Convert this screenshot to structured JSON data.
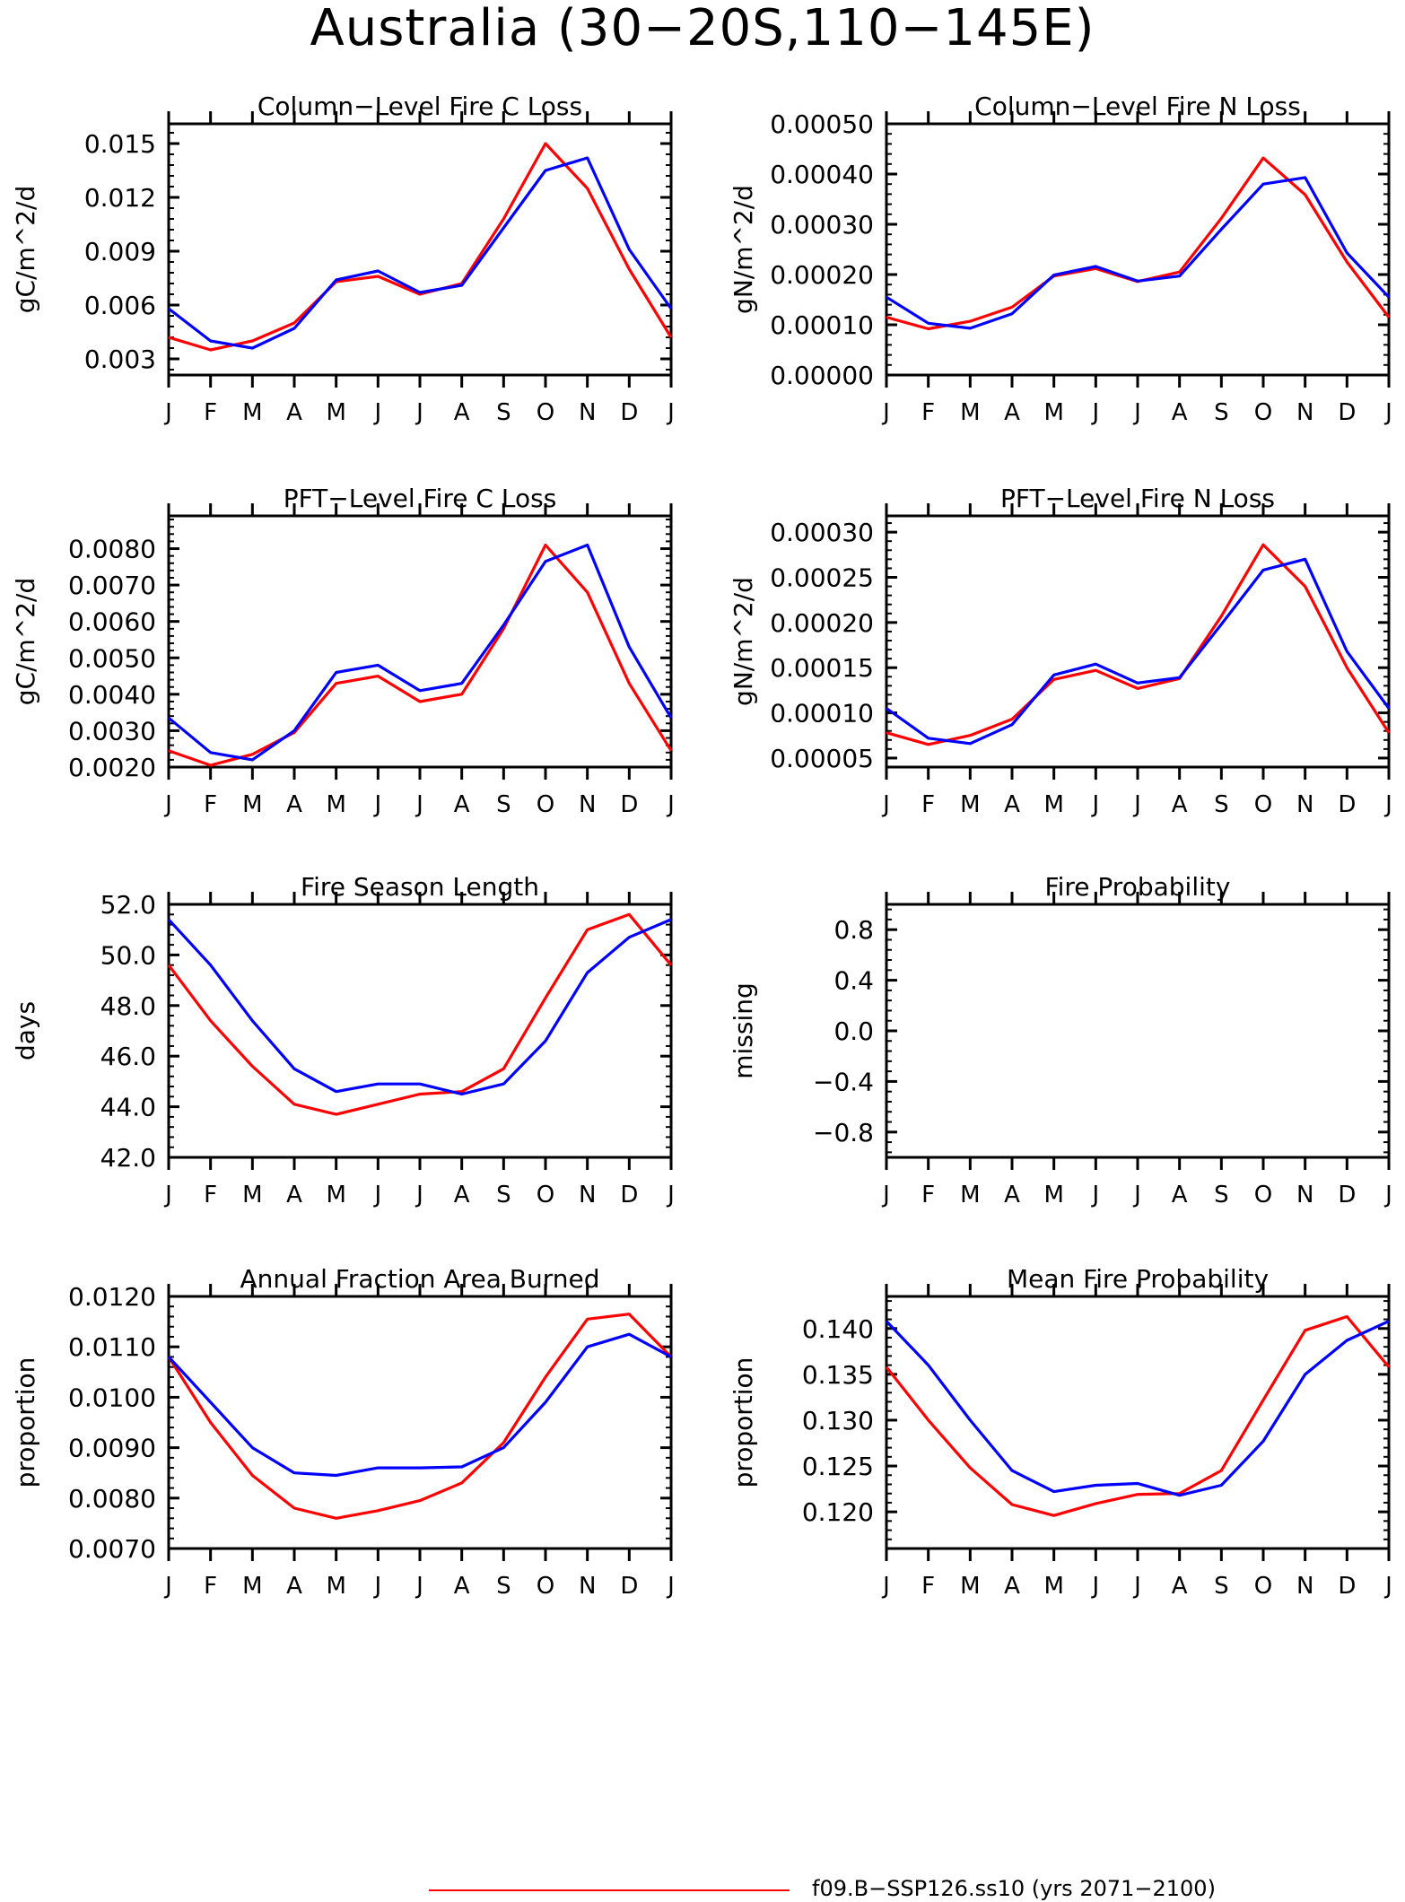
{
  "page": {
    "title": "Australia (30−20S,110−145E)",
    "legend": {
      "label": "f09.B−SSP126.ss10 (yrs 2071−2100)",
      "color": "#ff0000"
    }
  },
  "chart_data": [
    {
      "type": "line",
      "title": "Column−Level Fire C Loss",
      "ylabel": "gC/m^2/d",
      "x": [
        "J",
        "F",
        "M",
        "A",
        "M",
        "J",
        "J",
        "A",
        "S",
        "O",
        "N",
        "D",
        "J"
      ],
      "ylim": [
        0.0021,
        0.0161
      ],
      "yticks": [
        0.003,
        0.006,
        0.009,
        0.012,
        0.015
      ],
      "ytick_labels": [
        "0.003",
        "0.006",
        "0.009",
        "0.012",
        "0.015"
      ],
      "series": [
        {
          "color": "#ff0000",
          "values": [
            0.0042,
            0.0035,
            0.004,
            0.005,
            0.0073,
            0.0076,
            0.0066,
            0.0072,
            0.0108,
            0.015,
            0.0125,
            0.008,
            0.0042
          ]
        },
        {
          "color": "#0000ff",
          "values": [
            0.0058,
            0.004,
            0.0036,
            0.0047,
            0.0074,
            0.0079,
            0.0067,
            0.0071,
            0.0103,
            0.0135,
            0.0142,
            0.0091,
            0.0058
          ]
        }
      ]
    },
    {
      "type": "line",
      "title": "Column−Level Fire N Loss",
      "ylabel": "gN/m^2/d",
      "x": [
        "J",
        "F",
        "M",
        "A",
        "M",
        "J",
        "J",
        "A",
        "S",
        "O",
        "N",
        "D",
        "J"
      ],
      "ylim": [
        0.0,
        0.0005
      ],
      "yticks": [
        0.0,
        0.0001,
        0.0002,
        0.0003,
        0.0004,
        0.0005
      ],
      "ytick_labels": [
        "0.00000",
        "0.00010",
        "0.00020",
        "0.00030",
        "0.00040",
        "0.00050"
      ],
      "series": [
        {
          "color": "#ff0000",
          "values": [
            0.000115,
            9.2e-05,
            0.000107,
            0.000135,
            0.000197,
            0.000212,
            0.000186,
            0.000205,
            0.000312,
            0.000432,
            0.000359,
            0.000225,
            0.000115
          ]
        },
        {
          "color": "#0000ff",
          "values": [
            0.000155,
            0.000103,
            9.3e-05,
            0.000122,
            0.000199,
            0.000216,
            0.000187,
            0.000197,
            0.00029,
            0.00038,
            0.000393,
            0.000243,
            0.000155
          ]
        }
      ]
    },
    {
      "type": "line",
      "title": "PFT−Level Fire C Loss",
      "ylabel": "gC/m^2/d",
      "x": [
        "J",
        "F",
        "M",
        "A",
        "M",
        "J",
        "J",
        "A",
        "S",
        "O",
        "N",
        "D",
        "J"
      ],
      "ylim": [
        0.002,
        0.0089
      ],
      "yticks": [
        0.002,
        0.003,
        0.004,
        0.005,
        0.006,
        0.007,
        0.008
      ],
      "ytick_labels": [
        "0.0020",
        "0.0030",
        "0.0040",
        "0.0050",
        "0.0060",
        "0.0070",
        "0.0080"
      ],
      "series": [
        {
          "color": "#ff0000",
          "values": [
            0.00245,
            0.00205,
            0.00235,
            0.00295,
            0.0043,
            0.0045,
            0.0038,
            0.004,
            0.0058,
            0.0081,
            0.0068,
            0.0043,
            0.00245
          ]
        },
        {
          "color": "#0000ff",
          "values": [
            0.00335,
            0.0024,
            0.0022,
            0.003,
            0.0046,
            0.0048,
            0.0041,
            0.0043,
            0.0059,
            0.00765,
            0.0081,
            0.0053,
            0.00335
          ]
        }
      ]
    },
    {
      "type": "line",
      "title": "PFT−Level Fire N Loss",
      "ylabel": "gN/m^2/d",
      "x": [
        "J",
        "F",
        "M",
        "A",
        "M",
        "J",
        "J",
        "A",
        "S",
        "O",
        "N",
        "D",
        "J"
      ],
      "ylim": [
        4e-05,
        0.000318
      ],
      "yticks": [
        5e-05,
        0.0001,
        0.00015,
        0.0002,
        0.00025,
        0.0003
      ],
      "ytick_labels": [
        "0.00005",
        "0.00010",
        "0.00015",
        "0.00020",
        "0.00025",
        "0.00030"
      ],
      "series": [
        {
          "color": "#ff0000",
          "values": [
            7.8e-05,
            6.5e-05,
            7.5e-05,
            9.3e-05,
            0.000137,
            0.000147,
            0.000127,
            0.000138,
            0.000207,
            0.000286,
            0.00024,
            0.00015,
            7.8e-05
          ]
        },
        {
          "color": "#0000ff",
          "values": [
            0.000105,
            7.2e-05,
            6.6e-05,
            8.7e-05,
            0.000142,
            0.000154,
            0.000133,
            0.000139,
            0.000198,
            0.000258,
            0.00027,
            0.000168,
            0.000105
          ]
        }
      ]
    },
    {
      "type": "line",
      "title": "Fire Season Length",
      "ylabel": "days",
      "x": [
        "J",
        "F",
        "M",
        "A",
        "M",
        "J",
        "J",
        "A",
        "S",
        "O",
        "N",
        "D",
        "J"
      ],
      "ylim": [
        42.0,
        52.0
      ],
      "yticks": [
        42,
        44,
        46,
        48,
        50,
        52
      ],
      "ytick_labels": [
        "42.0",
        "44.0",
        "46.0",
        "48.0",
        "50.0",
        "52.0"
      ],
      "series": [
        {
          "color": "#ff0000",
          "values": [
            49.6,
            47.4,
            45.6,
            44.1,
            43.7,
            44.1,
            44.5,
            44.6,
            45.5,
            48.3,
            51.0,
            51.6,
            49.6
          ]
        },
        {
          "color": "#0000ff",
          "values": [
            51.4,
            49.6,
            47.4,
            45.5,
            44.6,
            44.9,
            44.9,
            44.5,
            44.9,
            46.6,
            49.3,
            50.7,
            51.4
          ]
        }
      ]
    },
    {
      "type": "line",
      "title": "Fire Probability",
      "ylabel": "missing",
      "x": [
        "J",
        "F",
        "M",
        "A",
        "M",
        "J",
        "J",
        "A",
        "S",
        "O",
        "N",
        "D",
        "J"
      ],
      "ylim": [
        -1.0,
        1.0
      ],
      "yticks": [
        -0.8,
        -0.4,
        0.0,
        0.4,
        0.8
      ],
      "ytick_labels": [
        "−0.8",
        "−0.4",
        "0.0",
        "0.4",
        "0.8"
      ],
      "series": []
    },
    {
      "type": "line",
      "title": "Annual Fraction Area Burned",
      "ylabel": "proportion",
      "x": [
        "J",
        "F",
        "M",
        "A",
        "M",
        "J",
        "J",
        "A",
        "S",
        "O",
        "N",
        "D",
        "J"
      ],
      "ylim": [
        0.007,
        0.012
      ],
      "yticks": [
        0.007,
        0.008,
        0.009,
        0.01,
        0.011,
        0.012
      ],
      "ytick_labels": [
        "0.0070",
        "0.0080",
        "0.0090",
        "0.0100",
        "0.0110",
        "0.0120"
      ],
      "series": [
        {
          "color": "#ff0000",
          "values": [
            0.0108,
            0.0095,
            0.00845,
            0.0078,
            0.0076,
            0.00775,
            0.00795,
            0.0083,
            0.0091,
            0.0104,
            0.01155,
            0.01165,
            0.0108
          ]
        },
        {
          "color": "#0000ff",
          "values": [
            0.0108,
            0.0099,
            0.009,
            0.0085,
            0.00845,
            0.0086,
            0.0086,
            0.00862,
            0.009,
            0.0099,
            0.011,
            0.01125,
            0.0108
          ]
        }
      ]
    },
    {
      "type": "line",
      "title": "Mean Fire Probability",
      "ylabel": "proportion",
      "x": [
        "J",
        "F",
        "M",
        "A",
        "M",
        "J",
        "J",
        "A",
        "S",
        "O",
        "N",
        "D",
        "J"
      ],
      "ylim": [
        0.116,
        0.1435
      ],
      "yticks": [
        0.12,
        0.125,
        0.13,
        0.135,
        0.14
      ],
      "ytick_labels": [
        "0.120",
        "0.125",
        "0.130",
        "0.135",
        "0.140"
      ],
      "series": [
        {
          "color": "#ff0000",
          "values": [
            0.1358,
            0.13,
            0.1248,
            0.1208,
            0.1196,
            0.1209,
            0.1219,
            0.122,
            0.1245,
            0.1322,
            0.1398,
            0.1413,
            0.1358
          ]
        },
        {
          "color": "#0000ff",
          "values": [
            0.1408,
            0.136,
            0.13,
            0.1245,
            0.1222,
            0.1229,
            0.1231,
            0.1218,
            0.1229,
            0.1277,
            0.135,
            0.1387,
            0.1408
          ]
        }
      ]
    }
  ]
}
